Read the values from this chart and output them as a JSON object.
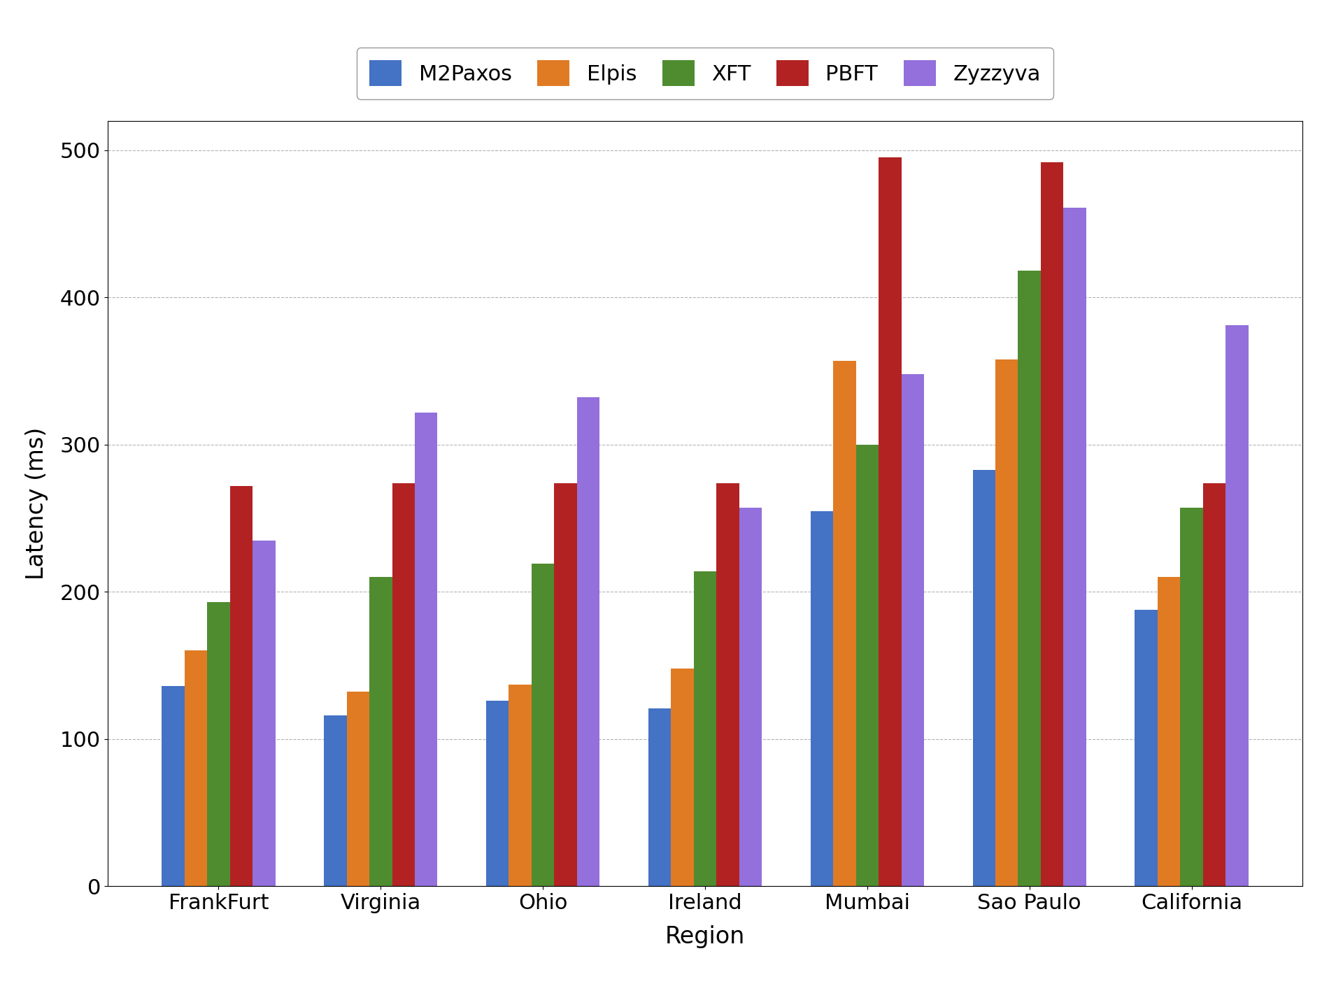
{
  "categories": [
    "FrankFurt",
    "Virginia",
    "Ohio",
    "Ireland",
    "Mumbai",
    "Sao Paulo",
    "California"
  ],
  "series": {
    "M2Paxos": [
      136,
      116,
      126,
      121,
      255,
      283,
      188
    ],
    "Elpis": [
      160,
      132,
      137,
      148,
      357,
      358,
      210
    ],
    "XFT": [
      193,
      210,
      219,
      214,
      300,
      418,
      257
    ],
    "PBFT": [
      272,
      274,
      274,
      274,
      495,
      492,
      274
    ],
    "Zyzzyva": [
      235,
      322,
      332,
      257,
      348,
      461,
      381
    ]
  },
  "colors": {
    "M2Paxos": "#4472c4",
    "Elpis": "#e07b24",
    "XFT": "#4f8c2f",
    "PBFT": "#b22222",
    "Zyzzyva": "#9370db"
  },
  "ylabel": "Latency (ms)",
  "xlabel": "Region",
  "ylim": [
    0,
    520
  ],
  "yticks": [
    0,
    100,
    200,
    300,
    400,
    500
  ],
  "legend_order": [
    "M2Paxos",
    "Elpis",
    "XFT",
    "PBFT",
    "Zyzzyva"
  ],
  "bar_width": 0.14,
  "figsize": [
    19.2,
    14.4
  ],
  "dpi": 100
}
